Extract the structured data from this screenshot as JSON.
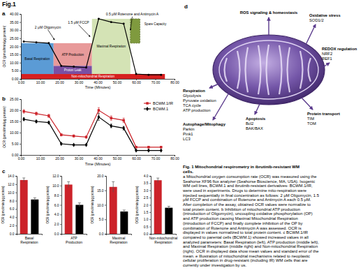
{
  "figure_title": "Fig.1",
  "chart_data": [
    {
      "type": "line",
      "title": "a",
      "x_label": "Time (Minutes)",
      "y_label": "OCR (pmol/min/μg protein)",
      "x": [
        1.5,
        8,
        14.5,
        21,
        27.5,
        34,
        40.5,
        47,
        53.5,
        60,
        66.5,
        73
      ],
      "values": [
        23.0,
        22.5,
        22.0,
        8.0,
        7.5,
        7.0,
        37.0,
        35.0,
        34.0,
        3.0,
        2.5,
        2.5
      ],
      "color": "#000000",
      "marker": "circle",
      "xlim": [
        0,
        80
      ],
      "xticks": [
        {
          "value": 0,
          "label": "0.00"
        },
        {
          "value": 10,
          "label": "10.00"
        },
        {
          "value": 20,
          "label": "20.00"
        },
        {
          "value": 30,
          "label": "30.00"
        },
        {
          "value": 40,
          "label": "40.00"
        },
        {
          "value": 50,
          "label": "50.00"
        },
        {
          "value": 60,
          "label": "60.00"
        },
        {
          "value": 70,
          "label": "70.00"
        },
        {
          "value": 80,
          "label": "80.00"
        }
      ],
      "ylim": [
        0,
        40
      ],
      "yticks": [
        {
          "value": 0,
          "label": "0.00"
        },
        {
          "value": 5,
          "label": "5.00"
        },
        {
          "value": 10,
          "label": "10.00"
        },
        {
          "value": 15,
          "label": "15.00"
        },
        {
          "value": 20,
          "label": "20.00"
        },
        {
          "value": 25,
          "label": "25.00"
        },
        {
          "value": 30,
          "label": "30.00"
        },
        {
          "value": 35,
          "label": "35.00"
        },
        {
          "value": 40,
          "label": "40.00"
        }
      ],
      "regions": [
        {
          "label": "Non-mitochondrial Respiration",
          "x": [
            0,
            75
          ],
          "y": [
            0,
            3
          ],
          "color": "#d62020"
        },
        {
          "label": "Basal Respiration",
          "x": [
            0,
            17
          ],
          "y": [
            3,
            22
          ],
          "color": "#5b9bd5"
        },
        {
          "label": "ATP Production",
          "x": [
            17,
            37
          ],
          "y": [
            8,
            22
          ],
          "color": "#e89a9a"
        },
        {
          "label": "Proton Leak",
          "x": [
            17,
            37
          ],
          "y": [
            3,
            8
          ],
          "color": "#7a4fa3"
        },
        {
          "label": "Maximal Respiration",
          "x": [
            37,
            57
          ],
          "y": [
            3,
            37
          ],
          "color": "#d4e3b5"
        },
        {
          "label": "Spare Capacity",
          "x": [
            57,
            62
          ],
          "y": [
            22,
            37
          ],
          "color": "#7f9a3e",
          "line_style": "dashed",
          "label_at": [
            70,
            33
          ]
        }
      ],
      "annotations": [
        {
          "text": "2 μM Oligomycin",
          "x": 17.5,
          "y": 24,
          "text_at": [
            14,
            31
          ]
        },
        {
          "text": "1.5 μM FCCP",
          "x": 36,
          "y": 26,
          "text_at": [
            30,
            34
          ]
        },
        {
          "text": "0.5 μM Rotenone and Antimycin A",
          "x": 57,
          "y": 30,
          "text_at": [
            58,
            39
          ]
        }
      ]
    },
    {
      "type": "line",
      "title": "b",
      "x_label": "Time (Minutes)",
      "y_label": "OCR (pmol/min/μg protein)",
      "x": [
        1.5,
        8,
        14.5,
        21,
        27.5,
        34,
        40.5,
        47,
        53.5,
        60,
        66.5,
        73
      ],
      "series": [
        {
          "name": "BCWM.1/IR",
          "color": "#cc2229",
          "marker": "square",
          "values": [
            19.5,
            18.5,
            17.5,
            9.0,
            8.5,
            8.0,
            20.0,
            16.5,
            15.5,
            3.5,
            3.5,
            3.5
          ],
          "errors": [
            0.8,
            0.7,
            0.7,
            0.5,
            0.5,
            0.5,
            1.2,
            1.0,
            1.0,
            0.3,
            0.3,
            0.3
          ]
        },
        {
          "name": "BCWM.1",
          "color": "#000000",
          "marker": "diamond",
          "values": [
            16.0,
            15.0,
            14.5,
            5.0,
            4.5,
            4.5,
            17.0,
            13.0,
            12.0,
            2.0,
            2.0,
            2.0
          ],
          "errors": [
            0.6,
            0.5,
            0.5,
            0.3,
            0.3,
            0.3,
            1.5,
            0.8,
            0.8,
            0.2,
            0.2,
            0.2
          ]
        }
      ],
      "xlim": [
        0,
        80
      ],
      "xticks": [
        {
          "value": 0,
          "label": "0.00"
        },
        {
          "value": 10,
          "label": "10.00"
        },
        {
          "value": 20,
          "label": "20.00"
        },
        {
          "value": 30,
          "label": "30.00"
        },
        {
          "value": 40,
          "label": "40.00"
        },
        {
          "value": 50,
          "label": "50.00"
        },
        {
          "value": 60,
          "label": "60.00"
        },
        {
          "value": 70,
          "label": "70.00"
        },
        {
          "value": 80,
          "label": "80.00"
        }
      ],
      "ylim": [
        0,
        25
      ],
      "yticks": [
        {
          "value": 0,
          "label": "0.00"
        },
        {
          "value": 5,
          "label": "5.00"
        },
        {
          "value": 10,
          "label": "10.00"
        },
        {
          "value": 15,
          "label": "15.00"
        },
        {
          "value": 20,
          "label": "20.00"
        },
        {
          "value": 25,
          "label": "25.00"
        }
      ],
      "legend": "upper right"
    },
    {
      "type": "bar",
      "title": "c",
      "categories": [
        null,
        null
      ],
      "values": [
        13.0,
        8.3
      ],
      "errors": [
        0.5,
        0.4
      ],
      "colors": [
        "#cc2229",
        "#000000"
      ],
      "x_label": "Basal Respiration",
      "y_label": "OCR (pmol/min/μg protein)",
      "ylim": [
        0,
        14
      ],
      "yticks": [
        {
          "value": 0,
          "label": "0.0"
        },
        {
          "value": 2,
          "label": "2.0"
        },
        {
          "value": 4,
          "label": "4.0"
        },
        {
          "value": 6,
          "label": "6.0"
        },
        {
          "value": 8,
          "label": "8.0"
        },
        {
          "value": 10,
          "label": "10.0"
        },
        {
          "value": 12,
          "label": "12.0"
        },
        {
          "value": 14,
          "label": "14.0"
        }
      ],
      "tick_labels": "y"
    },
    {
      "type": "bar",
      "categories": [
        null,
        null
      ],
      "values": [
        10.2,
        6.0
      ],
      "errors": [
        0.6,
        0.4
      ],
      "colors": [
        "#cc2229",
        "#000000"
      ],
      "x_label": "ATP Production",
      "y_label": "OCR (pmol/min/μg protein)",
      "ylim": [
        0,
        12
      ],
      "yticks": [
        {
          "value": 0,
          "label": "0.0"
        },
        {
          "value": 2,
          "label": "2.0"
        },
        {
          "value": 4,
          "label": "4.0"
        },
        {
          "value": 6,
          "label": "6.0"
        },
        {
          "value": 8,
          "label": "8.0"
        },
        {
          "value": 10,
          "label": "10.0"
        },
        {
          "value": 12,
          "label": "12.0"
        }
      ],
      "tick_labels": "y"
    },
    {
      "type": "bar",
      "categories": [
        null,
        null
      ],
      "values": [
        16.2,
        7.7
      ],
      "errors": [
        1.8,
        0.5
      ],
      "colors": [
        "#cc2229",
        "#000000"
      ],
      "x_label": "Maximal Respiration",
      "y_label": "OCR (pmol/min/μg protein)",
      "ylim": [
        0,
        20
      ],
      "yticks": [
        {
          "value": 0,
          "label": "0.0"
        },
        {
          "value": 5,
          "label": "5.0"
        },
        {
          "value": 10,
          "label": "10.0"
        },
        {
          "value": 15,
          "label": "15.0"
        },
        {
          "value": 20,
          "label": "20.0"
        }
      ],
      "tick_labels": "y"
    },
    {
      "type": "bar",
      "categories": [
        null,
        null
      ],
      "values": [
        3.7,
        1.8
      ],
      "errors": [
        0.15,
        0.1
      ],
      "colors": [
        "#cc2229",
        "#000000"
      ],
      "x_label": "Non-mitochondrial Respiration",
      "y_label": "OCR (pmol/min/μg protein)",
      "ylim": [
        0,
        4
      ],
      "yticks": [
        {
          "value": 0,
          "label": "0.0"
        },
        {
          "value": 0.5,
          "label": "0.5"
        },
        {
          "value": 1,
          "label": "1.0"
        },
        {
          "value": 1.5,
          "label": "1.5"
        },
        {
          "value": 2,
          "label": "2.0"
        },
        {
          "value": 2.5,
          "label": "2.5"
        },
        {
          "value": 3,
          "label": "3.0"
        },
        {
          "value": 3.5,
          "label": "3.5"
        },
        {
          "value": 4,
          "label": "4.0"
        }
      ],
      "tick_labels": "y"
    }
  ],
  "diagram": {
    "title": "d",
    "labels": [
      {
        "title": "ROS signaling & homeostasis",
        "items": []
      },
      {
        "title": "Oxidative stress",
        "items": [
          "SOD1/2"
        ]
      },
      {
        "title": "Respiration",
        "items": [
          "Glycolysis",
          "Pyruvate oxidation",
          "TCA cycle",
          "ATP production"
        ]
      },
      {
        "title": "REDOX regulation",
        "items": [
          "NRF2",
          "REF1"
        ]
      },
      {
        "title": "Autophage/Mitophagy",
        "items": [
          "Parkin",
          "Pink1",
          "LC3"
        ]
      },
      {
        "title": "Apoptosis",
        "items": [
          "Bcl2",
          "BAK/BAX"
        ]
      },
      {
        "title": "Protein transport",
        "items": [
          "TIM",
          "TOM"
        ]
      }
    ]
  },
  "caption": {
    "title": [
      "Fig. 1 Mitochondrial respirometry in ibrutinib-resistant WM",
      "cells."
    ],
    "lines": [
      "a Mitochondrial oxygen consumption rate (OCR) was measured using the",
      "Seahorse XF96 flux analyzer (Seahorse Bioscience, MA, USA). Isogenic",
      "WM cell lines, BCWM.1 and ibrutinib-resistant derivatives- BCWM.1/IR,",
      "were used in experiments. Drugs to determine mito-respiration were",
      "injected sequentially in final concentration as follows: 2 μM Oligomycin, 1.5",
      "μM FCCP and combination of Rotenone and Antimycin A each 0.5 μM.",
      "After completion of the assay, obtained OCR values were normalize to",
      "total protein content. b Inhibition of mitochondrial ATP production",
      "(introduction of Oligomycin), uncoupling oxidative phosphorylation (OP)",
      "and ATP production causing Maximal Mitochondrial Respiration",
      "(introduction of FCCP) and finally complete inhibition of the OP by",
      "combination of Rotenone and Antimycin A was assessed. OCR is",
      "displayed in values normalized to total protein content. c BCWM.1/IR",
      "compared to parental cells (BCWM.1) showed increased values in all",
      "analyzed parameters: Basal Respiration (left), ATP production (middle left),",
      "and Maximal Respiration (middle right) and Non-mitochondrial Respiration",
      "(right). OCR in displayed data show mean values and standard error of the",
      "mean. e Illustration of mitochondrial mechanisms related to neoplastic",
      "cellular proliferation in drug-resistant (including IR) WM cells that are",
      "currently under investigation by us."
    ]
  }
}
